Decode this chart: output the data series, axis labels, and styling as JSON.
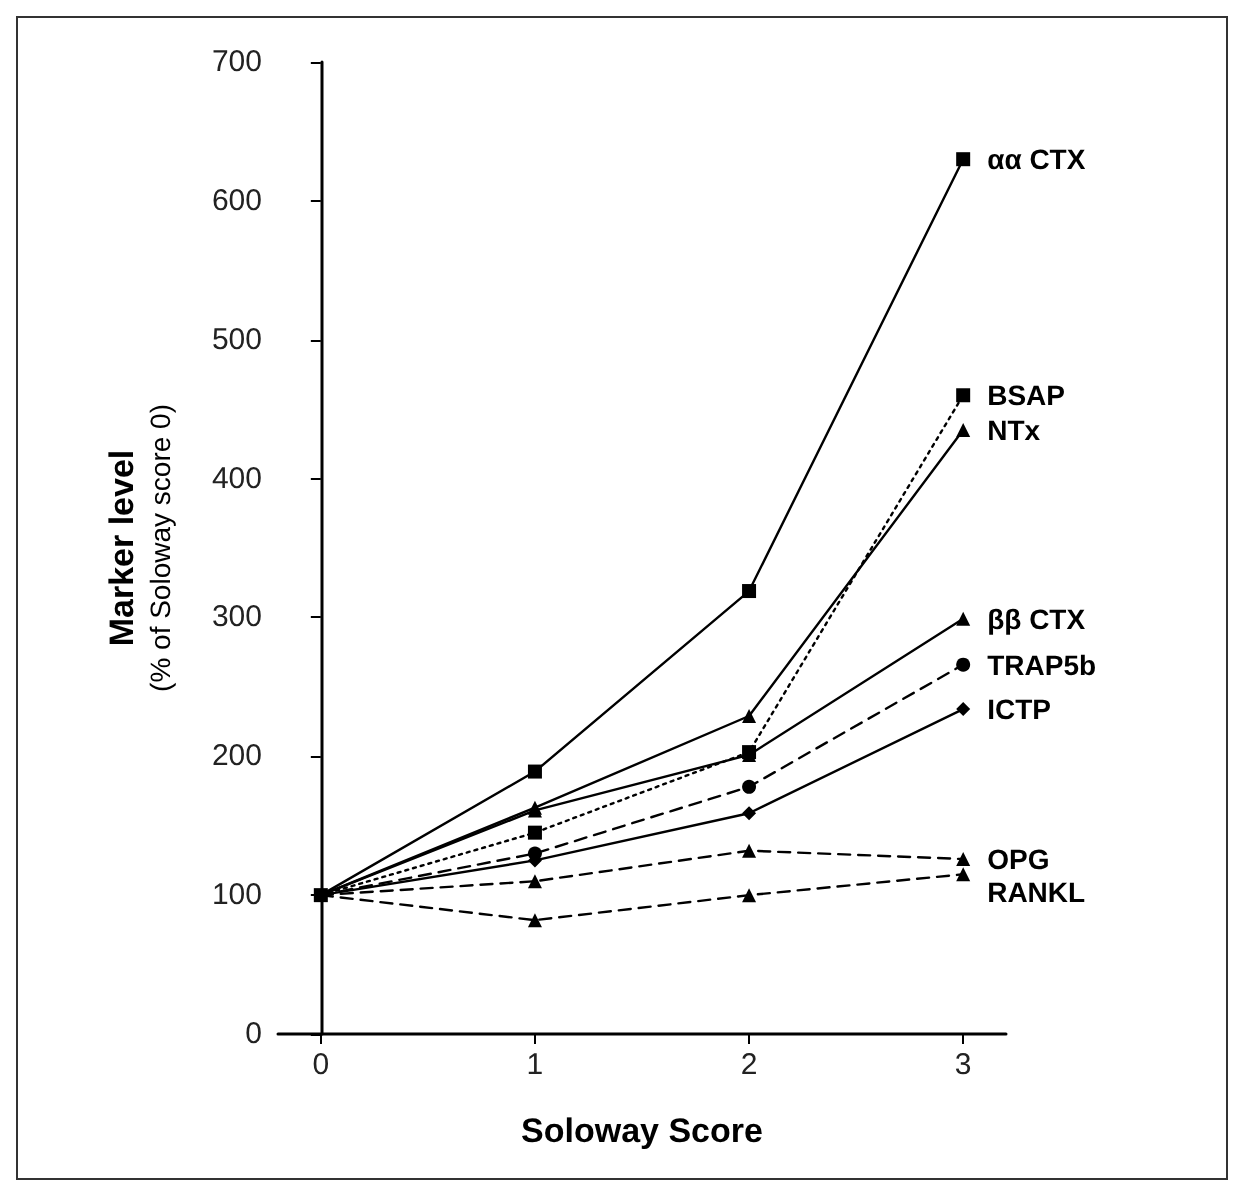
{
  "chart_data": {
    "type": "line",
    "xlabel": "Soloway Score",
    "ylabel": "Marker level\n(% of Soloway score 0)",
    "x": [
      0,
      1,
      2,
      3
    ],
    "xlim": [
      -0.2,
      3.2
    ],
    "xticks": [
      0,
      1,
      2,
      3
    ],
    "ylim": [
      0,
      700
    ],
    "yticks": [
      0,
      100,
      200,
      300,
      400,
      500,
      600,
      700
    ],
    "grid": false,
    "legend": false,
    "series": [
      {
        "name": "αα CTX",
        "color": "#000000",
        "values": [
          100,
          189,
          319,
          630
        ],
        "marker": "square",
        "line_style": "solid"
      },
      {
        "name": "BSAP",
        "color": "#000000",
        "values": [
          100,
          145,
          203,
          460
        ],
        "marker": "square",
        "line_style": "dotted"
      },
      {
        "name": "NTx",
        "color": "#000000",
        "values": [
          100,
          163,
          229,
          435
        ],
        "marker": "triangle",
        "line_style": "solid"
      },
      {
        "name": "ββ CTX",
        "color": "#000000",
        "values": [
          100,
          161,
          201,
          299
        ],
        "marker": "triangle",
        "line_style": "solid"
      },
      {
        "name": "TRAP5b",
        "color": "#000000",
        "values": [
          100,
          130,
          178,
          266
        ],
        "marker": "circle",
        "line_style": "dashed"
      },
      {
        "name": "ICTP",
        "color": "#000000",
        "values": [
          100,
          125,
          159,
          234
        ],
        "marker": "diamond",
        "line_style": "solid"
      },
      {
        "name": "OPG",
        "color": "#000000",
        "values": [
          100,
          110,
          132,
          126
        ],
        "marker": "triangle",
        "line_style": "dashed"
      },
      {
        "name": "RANKL",
        "color": "#000000",
        "values": [
          100,
          82,
          100,
          115
        ],
        "marker": "triangle",
        "line_style": "dashed"
      }
    ]
  }
}
